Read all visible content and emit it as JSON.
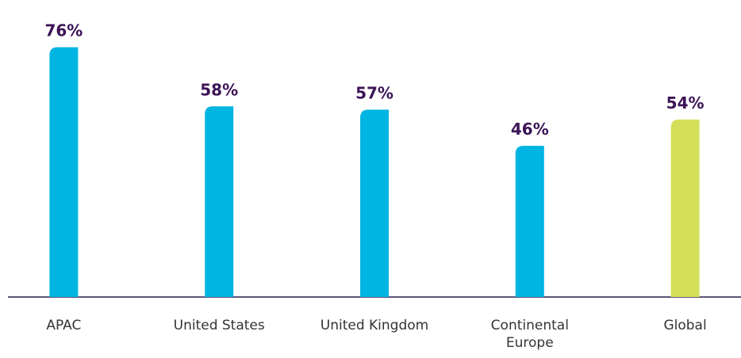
{
  "chart_data": {
    "type": "bar",
    "categories": [
      "APAC",
      "United States",
      "United Kingdom",
      "Continental Europe",
      "Global"
    ],
    "values": [
      76,
      58,
      57,
      46,
      54
    ],
    "value_labels": [
      "76%",
      "58%",
      "57%",
      "46%",
      "54%"
    ],
    "colors": [
      "#00b5e2",
      "#00b5e2",
      "#00b5e2",
      "#00b5e2",
      "#d4df5a"
    ]
  }
}
